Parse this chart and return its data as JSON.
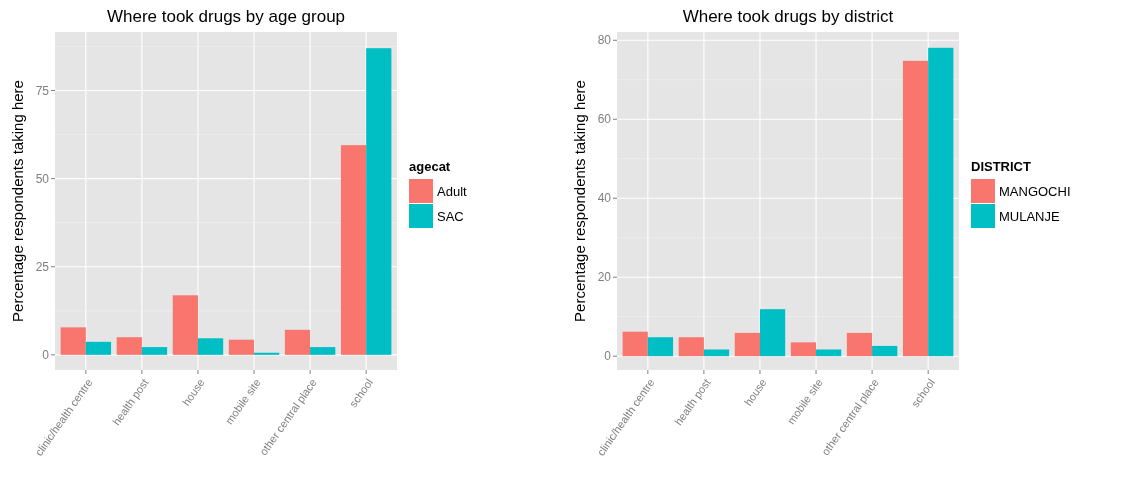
{
  "chart_data": [
    {
      "type": "bar",
      "title": "Where took drugs by age group",
      "ylabel": "Percentage respondents taking here",
      "legend_title": "agecat",
      "categories": [
        "clinic/health centre",
        "health post",
        "house",
        "mobile site",
        "other central place",
        "school"
      ],
      "series": [
        {
          "name": "Adult",
          "color": "#f8766d",
          "values": [
            7.8,
            5.0,
            16.9,
            4.3,
            7.1,
            59.5
          ]
        },
        {
          "name": "SAC",
          "color": "#00bfc4",
          "values": [
            3.7,
            2.2,
            4.7,
            0.6,
            2.2,
            87.0
          ]
        }
      ],
      "ylim": [
        -4.3,
        91.6
      ],
      "yticks": [
        0,
        25,
        50,
        75
      ],
      "grid": true,
      "legend": "right"
    },
    {
      "type": "bar",
      "title": "Where took drugs by district",
      "ylabel": "Percentage respondents taking here",
      "legend_title": "DISTRICT",
      "categories": [
        "clinic/health centre",
        "health post",
        "house",
        "mobile site",
        "other central place",
        "school"
      ],
      "series": [
        {
          "name": "MANGOCHI",
          "color": "#f8766d",
          "values": [
            6.2,
            4.8,
            5.9,
            3.5,
            5.9,
            74.8
          ]
        },
        {
          "name": "MULANJE",
          "color": "#00bfc4",
          "values": [
            4.8,
            1.7,
            11.9,
            1.7,
            2.6,
            78.1
          ]
        }
      ],
      "ylim": [
        -3.5,
        82.1
      ],
      "yticks": [
        0,
        20,
        40,
        60,
        80
      ],
      "grid": true,
      "legend": "right"
    }
  ]
}
